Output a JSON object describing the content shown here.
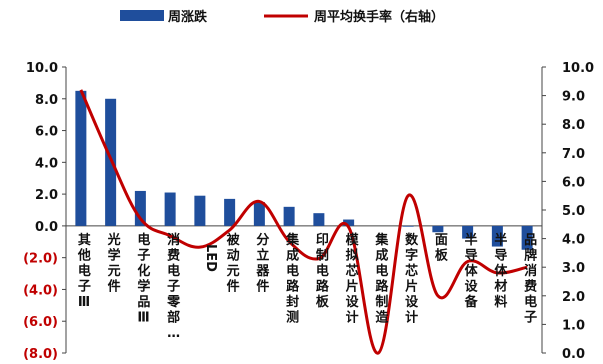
{
  "chart_data": {
    "type": "bar",
    "categories": [
      "其他电子Ⅲ",
      "光学元件",
      "电子化学品Ⅲ",
      "消费电子零部…",
      "LED",
      "被动元件",
      "分立器件",
      "集成电路封测",
      "印制电路板",
      "模拟芯片设计",
      "集成电路制造",
      "数字芯片设计",
      "面板",
      "半导体设备",
      "半导体材料",
      "品牌消费电子"
    ],
    "series": [
      {
        "name": "周涨跌",
        "type": "bar",
        "axis": "left",
        "color": "#1f4e9c",
        "values": [
          8.5,
          8.0,
          2.2,
          2.1,
          1.9,
          1.7,
          1.5,
          1.2,
          0.8,
          0.4,
          0.0,
          -0.05,
          -0.4,
          -0.8,
          -1.3,
          -1.5
        ]
      },
      {
        "name": "周平均换手率（右轴）",
        "type": "line",
        "axis": "right",
        "color": "#c00000",
        "values": [
          9.2,
          6.8,
          4.7,
          4.1,
          3.7,
          4.3,
          5.3,
          3.9,
          3.3,
          4.4,
          0.0,
          5.5,
          2.0,
          3.2,
          2.8,
          3.0
        ]
      }
    ],
    "y_left": {
      "min": -8,
      "max": 10,
      "ticks": [
        "(8.0)",
        "(6.0)",
        "(4.0)",
        "(2.0)",
        "0.0",
        "2.0",
        "4.0",
        "6.0",
        "8.0",
        "10.0"
      ]
    },
    "y_right": {
      "min": 0,
      "max": 10,
      "ticks": [
        "0.0",
        "1.0",
        "2.0",
        "3.0",
        "4.0",
        "5.0",
        "6.0",
        "7.0",
        "8.0",
        "9.0",
        "10.0"
      ]
    },
    "legend_position": "top"
  }
}
